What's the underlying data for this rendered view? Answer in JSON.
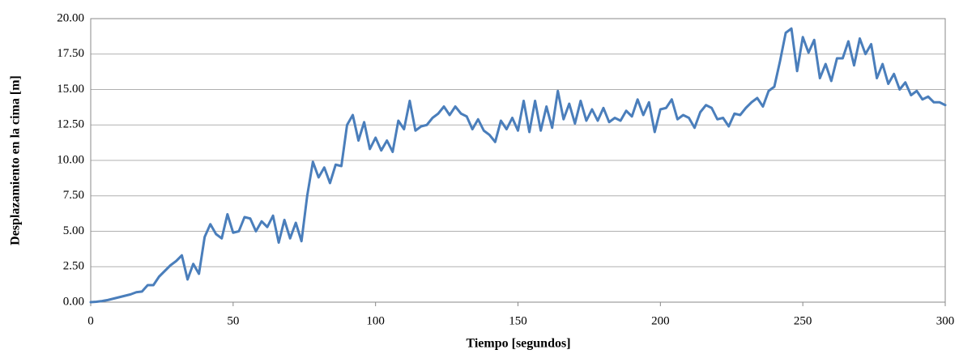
{
  "chart_data": {
    "type": "line",
    "x_label": "Tiempo [segundos]",
    "y_label": "Desplazamiento en la cima [m]",
    "x": [
      0,
      2,
      4,
      6,
      8,
      10,
      12,
      14,
      16,
      18,
      20,
      22,
      24,
      26,
      28,
      30,
      32,
      34,
      36,
      38,
      40,
      42,
      44,
      46,
      48,
      50,
      52,
      54,
      56,
      58,
      60,
      62,
      64,
      66,
      68,
      70,
      72,
      74,
      76,
      78,
      80,
      82,
      84,
      86,
      88,
      90,
      92,
      94,
      96,
      98,
      100,
      102,
      104,
      106,
      108,
      110,
      112,
      114,
      116,
      118,
      120,
      122,
      124,
      126,
      128,
      130,
      132,
      134,
      136,
      138,
      140,
      142,
      144,
      146,
      148,
      150,
      152,
      154,
      156,
      158,
      160,
      162,
      164,
      166,
      168,
      170,
      172,
      174,
      176,
      178,
      180,
      182,
      184,
      186,
      188,
      190,
      192,
      194,
      196,
      198,
      200,
      202,
      204,
      206,
      208,
      210,
      212,
      214,
      216,
      218,
      220,
      222,
      224,
      226,
      228,
      230,
      232,
      234,
      236,
      238,
      240,
      242,
      244,
      246,
      248,
      250,
      252,
      254,
      256,
      258,
      260,
      262,
      264,
      266,
      268,
      270,
      272,
      274,
      276,
      278,
      280,
      282,
      284,
      286,
      288,
      290,
      292,
      294,
      296,
      298,
      300
    ],
    "values": [
      0,
      0.03,
      0.08,
      0.15,
      0.25,
      0.35,
      0.45,
      0.55,
      0.7,
      0.75,
      1.2,
      1.2,
      1.8,
      2.2,
      2.6,
      2.9,
      3.3,
      1.6,
      2.7,
      2.0,
      4.6,
      5.5,
      4.8,
      4.5,
      6.2,
      4.9,
      5.0,
      6.0,
      5.9,
      5.0,
      5.7,
      5.3,
      6.1,
      4.2,
      5.8,
      4.5,
      5.6,
      4.3,
      7.5,
      9.9,
      8.8,
      9.5,
      8.4,
      9.7,
      9.6,
      12.5,
      13.2,
      11.4,
      12.7,
      10.8,
      11.6,
      10.7,
      11.4,
      10.6,
      12.8,
      12.2,
      14.2,
      12.1,
      12.4,
      12.5,
      13.0,
      13.3,
      13.8,
      13.2,
      13.8,
      13.3,
      13.1,
      12.2,
      12.9,
      12.1,
      11.8,
      11.3,
      12.8,
      12.2,
      13.0,
      12.1,
      14.2,
      12.0,
      14.2,
      12.1,
      13.8,
      12.3,
      14.9,
      12.9,
      14.0,
      12.6,
      14.2,
      12.8,
      13.6,
      12.8,
      13.7,
      12.7,
      13.0,
      12.8,
      13.5,
      13.1,
      14.3,
      13.2,
      14.1,
      12.0,
      13.6,
      13.7,
      14.3,
      12.9,
      13.2,
      13.0,
      12.3,
      13.4,
      13.9,
      13.7,
      12.9,
      13.0,
      12.4,
      13.3,
      13.2,
      13.7,
      14.1,
      14.4,
      13.8,
      14.9,
      15.2,
      17.0,
      19.0,
      19.3,
      16.3,
      18.7,
      17.6,
      18.5,
      15.8,
      16.8,
      15.6,
      17.2,
      17.2,
      18.4,
      16.7,
      18.6,
      17.5,
      18.2,
      15.8,
      16.8,
      15.4,
      16.1,
      15.0,
      15.5,
      14.6,
      14.9,
      14.3,
      14.5,
      14.1,
      14.1,
      13.9
    ],
    "color": "#4a7ebb",
    "xlim": [
      0,
      300
    ],
    "xticks": [
      0,
      50,
      100,
      150,
      200,
      250,
      300
    ],
    "ylim": [
      0,
      20
    ],
    "yticks": [
      {
        "value": 0,
        "label": "0.00"
      },
      {
        "value": 2.5,
        "label": "2.50"
      },
      {
        "value": 5,
        "label": "5.00"
      },
      {
        "value": 7.5,
        "label": "7.50"
      },
      {
        "value": 10,
        "label": "10.00"
      },
      {
        "value": 12.5,
        "label": "12.50"
      },
      {
        "value": 15,
        "label": "15.00"
      },
      {
        "value": 17.5,
        "label": "17.50"
      },
      {
        "value": 20,
        "label": "20.00"
      }
    ],
    "grid": true
  }
}
